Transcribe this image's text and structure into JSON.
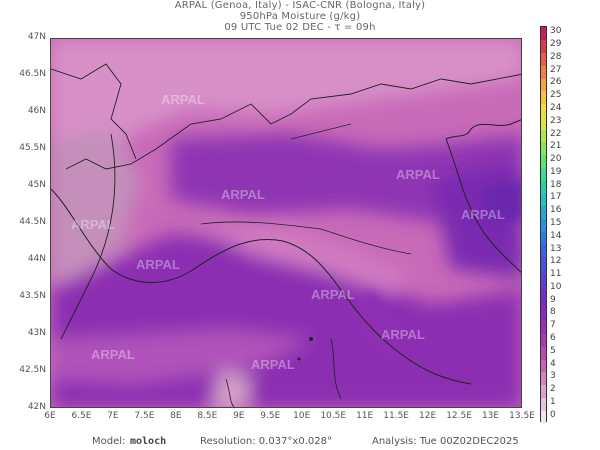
{
  "header": {
    "line1": "ARPAL (Genoa, Italy)  -  ISAC-CNR (Bologna, Italy)",
    "line2": "950hPa Moisture (g/kg)",
    "line3": "09 UTC Tue 02 DEC  -  τ = 09h"
  },
  "axes": {
    "lat_labels": [
      "47N",
      "46.5N",
      "46N",
      "45.5N",
      "45N",
      "44.5N",
      "44N",
      "43.5N",
      "43N",
      "42.5N",
      "42N"
    ],
    "lon_labels": [
      "6E",
      "6.5E",
      "7E",
      "7.5E",
      "8E",
      "8.5E",
      "9E",
      "9.5E",
      "10E",
      "10.5E",
      "11E",
      "11.5E",
      "12E",
      "12.5E",
      "13E",
      "13.5E"
    ]
  },
  "colorbar": {
    "labels": [
      "30",
      "29",
      "28",
      "27",
      "26",
      "25",
      "24",
      "23",
      "22",
      "21",
      "20",
      "19",
      "18",
      "17",
      "16",
      "15",
      "14",
      "13",
      "12",
      "11",
      "10",
      "9",
      "8",
      "7",
      "6",
      "5",
      "4",
      "3",
      "2",
      "1",
      "0"
    ],
    "colors": [
      "#f4e3ef",
      "#e7c5de",
      "#d9a6ca",
      "#cf86bd",
      "#c566b4",
      "#b94bb0",
      "#a93bb0",
      "#9a32b5",
      "#8a2dbb",
      "#7b2dc1",
      "#6b35c8",
      "#5a43cf",
      "#4b52d6",
      "#3a63dd",
      "#2f78e2",
      "#2a90de",
      "#2aa6cf",
      "#2bbcbe",
      "#2ccda8",
      "#40d98f",
      "#62e176",
      "#8ae462",
      "#b0e653",
      "#d4e64a",
      "#eedd47",
      "#f5c34a",
      "#f5a24a",
      "#ee804a",
      "#e55d4c",
      "#d63b50",
      "#c3205a"
    ]
  },
  "footer": {
    "model_label": "Model:",
    "model_value": "moloch",
    "resolution": "Resolution: 0.037°x0.028°",
    "analysis": "Analysis: Tue 00Z02DEC2025"
  },
  "watermark": "ARPAL"
}
